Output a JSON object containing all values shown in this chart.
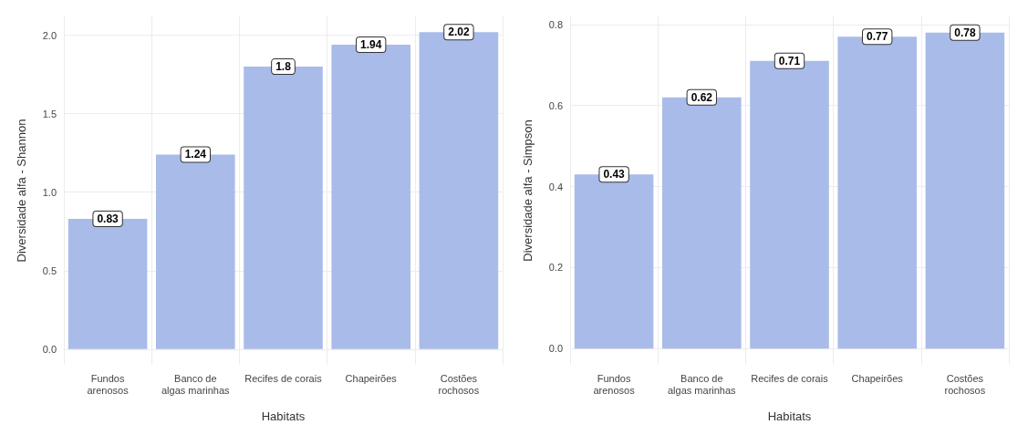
{
  "chart_data": [
    {
      "type": "bar",
      "xlabel": "Habitats",
      "ylabel": "Diversidade alfa - Shannon",
      "categories": [
        "Fundos\narenosos",
        "Banco de\nalgas marinhas",
        "Recifes de corais",
        "Chapeirões",
        "Costões\nrochosos"
      ],
      "values": [
        0.83,
        1.24,
        1.8,
        1.94,
        2.02
      ],
      "color": "#a9bbe8",
      "ylim": [
        -0.1,
        2.12
      ],
      "yticks": [
        {
          "value": 0,
          "label": "0.0"
        },
        0.5,
        {
          "value": 1,
          "label": "1.0"
        },
        1.5,
        {
          "value": 2,
          "label": "2.0"
        }
      ],
      "grid": true,
      "data_labels": true
    },
    {
      "type": "bar",
      "xlabel": "Habitats",
      "ylabel": "Diversidade alfa - Simpson",
      "categories": [
        "Fundos\narenosos",
        "Banco de\nalgas marinhas",
        "Recifes de corais",
        "Chapeirões",
        "Costões\nrochosos"
      ],
      "values": [
        0.43,
        0.62,
        0.71,
        0.77,
        0.78
      ],
      "color": "#a9bbe8",
      "ylim": [
        -0.04,
        0.82
      ],
      "yticks": [
        {
          "value": 0,
          "label": "0.0"
        },
        0.2,
        0.4,
        0.6,
        0.8
      ],
      "grid": true,
      "data_labels": true
    }
  ]
}
